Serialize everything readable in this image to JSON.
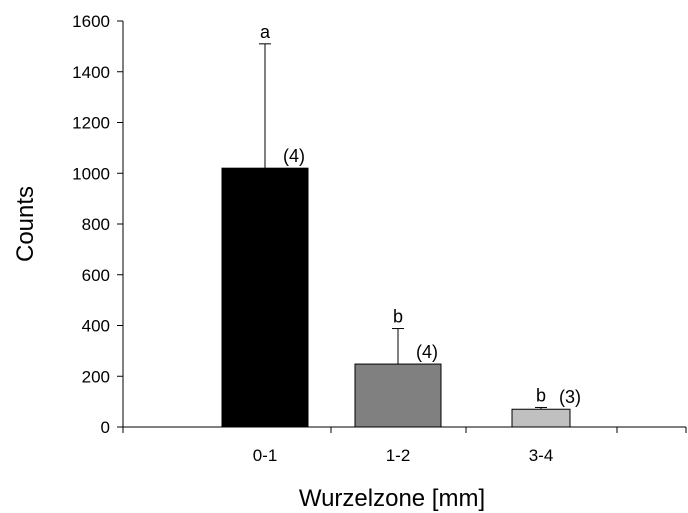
{
  "chart_data": {
    "type": "bar",
    "categories": [
      "0-1",
      "1-2",
      "3-4"
    ],
    "values": [
      1020,
      248,
      70
    ],
    "error_upper": [
      1510,
      388,
      77
    ],
    "significance_letters": [
      "a",
      "b",
      "b"
    ],
    "sample_sizes": [
      "(4)",
      "(4)",
      "(3)"
    ],
    "xlabel": "Wurzelzone [mm]",
    "ylabel": "Counts",
    "ylim": [
      0,
      1600
    ],
    "yticks": [
      "0",
      "200",
      "400",
      "600",
      "800",
      "1000",
      "1200",
      "1400",
      "1600"
    ],
    "bar_colors": [
      "#000000",
      "#808080",
      "#c0c0c0"
    ],
    "grid": false
  }
}
